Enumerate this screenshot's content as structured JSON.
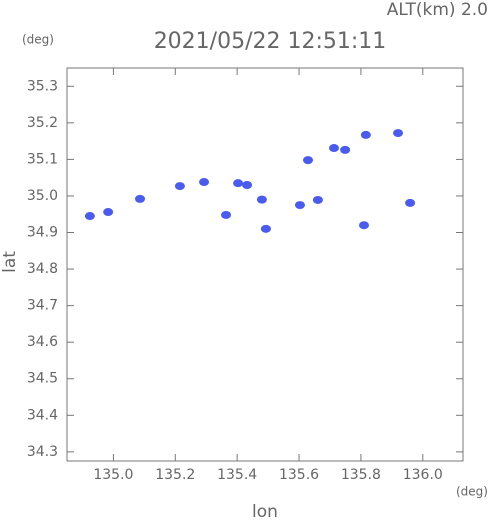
{
  "chart_data": {
    "type": "scatter",
    "title": "2021/05/22 12:51:11",
    "annotation": "ALT(km) 2.0",
    "x_unit": "(deg)",
    "y_unit": "(deg)",
    "xlabel": "lon",
    "ylabel": "lat",
    "xlim": [
      134.85,
      136.13
    ],
    "ylim": [
      34.275,
      35.35
    ],
    "xticks": [
      {
        "value": 135,
        "label": "135.0"
      },
      135.2,
      135.4,
      135.6,
      135.8,
      {
        "value": 136,
        "label": "136.0"
      }
    ],
    "yticks": [
      34.3,
      34.4,
      34.5,
      34.6,
      34.7,
      34.8,
      34.9,
      {
        "value": 35,
        "label": "35.0"
      },
      35.1,
      35.2,
      35.3
    ],
    "series": [
      {
        "color": "#4a5cf0",
        "x": [
          134.924,
          134.983,
          135.086,
          135.215,
          135.293,
          135.403,
          135.432,
          135.364,
          135.48,
          135.493,
          135.603,
          135.661,
          135.629,
          135.713,
          135.749,
          135.816,
          135.81,
          135.92,
          135.959
        ],
        "values": [
          34.945,
          34.956,
          34.992,
          35.027,
          35.038,
          35.035,
          35.03,
          34.948,
          34.99,
          34.91,
          34.975,
          34.989,
          35.098,
          35.131,
          35.126,
          35.167,
          34.92,
          35.172,
          34.981
        ]
      }
    ]
  }
}
